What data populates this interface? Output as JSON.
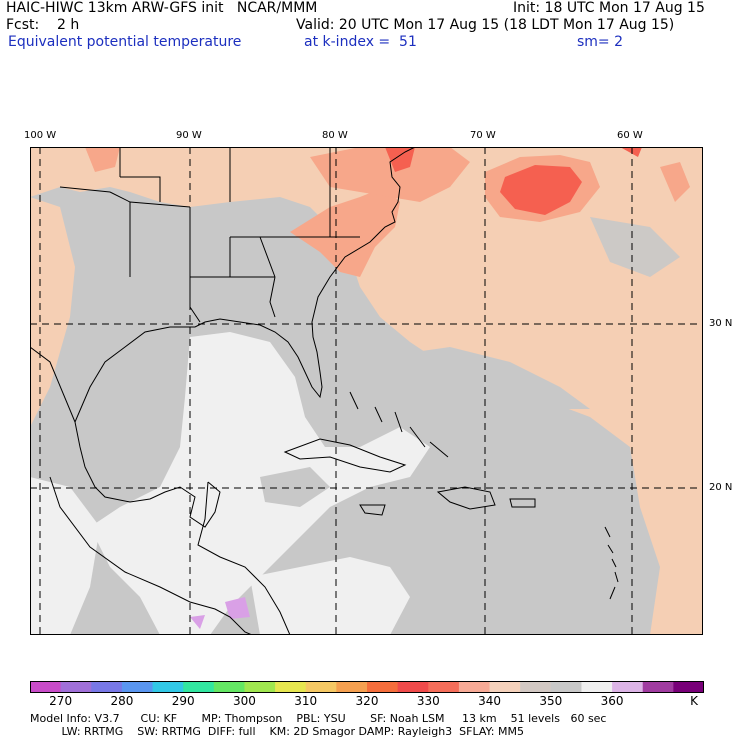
{
  "header": {
    "model_line": "HAIC-HIWC 13km ARW-GFS init   NCAR/MMM",
    "init_line": "Init: 18 UTC Mon 17 Aug 15",
    "fcst_line": "Fcst:    2 h",
    "valid_line": "Valid: 20 UTC Mon 17 Aug 15 (18 LDT Mon 17 Aug 15)",
    "field_name": "Equivalent potential temperature",
    "level_text": "at k-index =  51",
    "smoothing": "sm= 2"
  },
  "map": {
    "lon_labels": [
      "100 W",
      "90 W",
      "80 W",
      "70 W",
      "60 W"
    ],
    "lat_labels": [
      "30 N",
      "20 N"
    ],
    "colors": {
      "background_gray": "#c8c8c8",
      "light_gray": "#f0f0f0",
      "tan": "#f5cfb4",
      "salmon": "#f7a78a",
      "red_orange": "#f56050",
      "violet": "#d9a0e6"
    }
  },
  "colorbar": {
    "colors": [
      "#c84cc8",
      "#a070d8",
      "#7878e6",
      "#5a96f0",
      "#32c8e6",
      "#32e6a0",
      "#64e664",
      "#a0e650",
      "#e6e650",
      "#f5c864",
      "#f5a050",
      "#f56e3c",
      "#f04b4b",
      "#f56e5a",
      "#f7aa96",
      "#f5d2bc",
      "#d2c8c3",
      "#c8c8c8",
      "#f0f0f0",
      "#dcb4e6",
      "#a03ca0",
      "#780078"
    ],
    "tick_labels": [
      "270",
      "280",
      "290",
      "300",
      "310",
      "320",
      "330",
      "340",
      "350",
      "360"
    ],
    "unit": "K"
  },
  "model_info": {
    "line1": "Model Info: V3.7      CU: KF       MP: Thompson    PBL: YSU       SF: Noah LSM     13 km    51 levels   60 sec",
    "line2": "         LW: RRTMG    SW: RRTMG  DIFF: full    KM: 2D Smagor DAMP: Rayleigh3  SFLAY: MM5"
  }
}
